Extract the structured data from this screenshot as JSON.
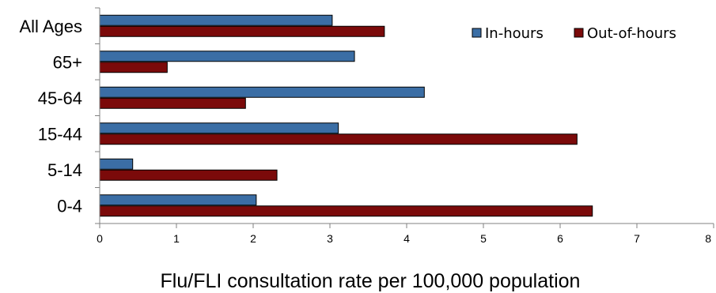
{
  "chart_data": {
    "type": "bar",
    "orientation": "horizontal",
    "categories": [
      "All Ages",
      "65+",
      "45-64",
      "15-44",
      "5-14",
      "0-4"
    ],
    "series": [
      {
        "name": "In-hours",
        "color": "#3B6EA5",
        "values": [
          3.03,
          3.32,
          4.23,
          3.11,
          0.43,
          2.04
        ]
      },
      {
        "name": "Out-of-hours",
        "color": "#7B0A0A",
        "values": [
          3.71,
          0.88,
          1.9,
          6.22,
          2.31,
          6.42
        ]
      }
    ],
    "xlabel": "Flu/FLI consultation rate per 100,000 population",
    "ylabel": "",
    "xlim": [
      0,
      8
    ],
    "xticks": [
      "0",
      "1",
      "2",
      "3",
      "4",
      "5",
      "6",
      "7",
      "8"
    ],
    "grid": false,
    "legend_position": "top-right"
  }
}
